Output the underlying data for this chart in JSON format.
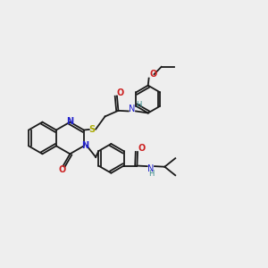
{
  "bg_color": "#eeeeee",
  "bond_color": "#1a1a1a",
  "N_color": "#2020cc",
  "O_color": "#cc2020",
  "S_color": "#aaaa00",
  "H_color": "#338888",
  "lw": 1.3,
  "fig_size": [
    3.0,
    3.0
  ],
  "dpi": 100,
  "xlim": [
    0,
    10
  ],
  "ylim": [
    0,
    10
  ]
}
